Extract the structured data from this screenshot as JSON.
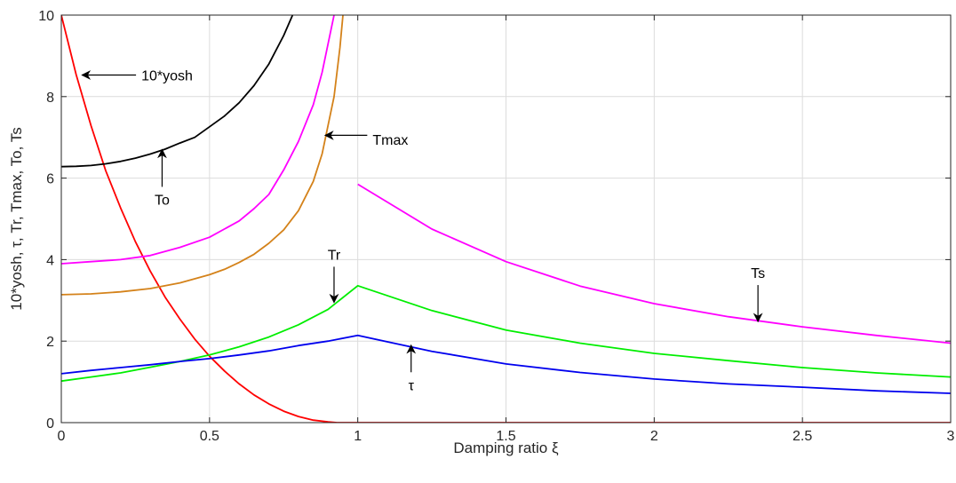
{
  "chart_data": {
    "type": "line",
    "title": "",
    "xlabel": "Damping ratio ξ",
    "ylabel": "10*yosh, τ, Tr, Tmax, To, Ts",
    "xlim": [
      0,
      3
    ],
    "ylim": [
      0,
      10
    ],
    "grid": true,
    "x_ticks": [
      0,
      0.5,
      1,
      1.5,
      2,
      2.5,
      3
    ],
    "x_tick_labels": [
      "0",
      "0.5",
      "1",
      "1.5",
      "2",
      "2.5",
      "3"
    ],
    "y_ticks": [
      0,
      2,
      4,
      6,
      8,
      10
    ],
    "y_tick_labels": [
      "0",
      "2",
      "4",
      "6",
      "8",
      "10"
    ],
    "series": [
      {
        "key": "yosh",
        "color": "#ff0000",
        "x": [
          0,
          0.05,
          0.1,
          0.15,
          0.2,
          0.25,
          0.3,
          0.35,
          0.4,
          0.45,
          0.5,
          0.55,
          0.6,
          0.65,
          0.7,
          0.75,
          0.8,
          0.85,
          0.9,
          0.93,
          0.95,
          1,
          1.5,
          2,
          2.5,
          3
        ],
        "y": [
          10,
          8.54,
          7.29,
          6.18,
          5.27,
          4.44,
          3.72,
          3.08,
          2.54,
          2.05,
          1.63,
          1.27,
          0.95,
          0.68,
          0.46,
          0.28,
          0.15,
          0.06,
          0.02,
          0,
          0,
          0,
          0,
          0,
          0,
          0
        ]
      },
      {
        "key": "To",
        "color": "#000000",
        "x": [
          0,
          0.05,
          0.1,
          0.15,
          0.2,
          0.25,
          0.3,
          0.35,
          0.4,
          0.45,
          0.5,
          0.55,
          0.6,
          0.65,
          0.7,
          0.75,
          0.78
        ],
        "y": [
          6.28,
          6.29,
          6.31,
          6.35,
          6.41,
          6.49,
          6.59,
          6.71,
          6.86,
          7.0,
          7.26,
          7.52,
          7.85,
          8.27,
          8.8,
          9.5,
          10
        ]
      },
      {
        "key": "Tmax_upper",
        "color": "#ff00ff",
        "x": [
          0,
          0.1,
          0.2,
          0.3,
          0.4,
          0.5,
          0.55,
          0.6,
          0.65,
          0.7,
          0.75,
          0.8,
          0.85,
          0.88,
          0.9,
          0.92
        ],
        "y": [
          3.9,
          3.95,
          4.0,
          4.1,
          4.3,
          4.55,
          4.75,
          4.95,
          5.25,
          5.6,
          6.2,
          6.9,
          7.8,
          8.6,
          9.3,
          10
        ]
      },
      {
        "key": "Tmax",
        "color": "#d4821a",
        "x": [
          0,
          0.1,
          0.2,
          0.3,
          0.4,
          0.5,
          0.55,
          0.6,
          0.65,
          0.7,
          0.75,
          0.8,
          0.85,
          0.88,
          0.9,
          0.92,
          0.94,
          0.95
        ],
        "y": [
          3.14,
          3.16,
          3.21,
          3.29,
          3.43,
          3.63,
          3.76,
          3.93,
          4.13,
          4.4,
          4.73,
          5.2,
          5.92,
          6.6,
          7.3,
          8.0,
          9.2,
          10
        ]
      },
      {
        "key": "Ts",
        "color": "#ff00ff",
        "x": [
          1,
          1.25,
          1.5,
          1.75,
          2,
          2.25,
          2.5,
          2.75,
          3
        ],
        "y": [
          5.85,
          4.75,
          3.95,
          3.35,
          2.92,
          2.6,
          2.35,
          2.14,
          1.95
        ]
      },
      {
        "key": "Tr",
        "color": "#00ee00",
        "x": [
          0,
          0.1,
          0.2,
          0.3,
          0.4,
          0.5,
          0.6,
          0.7,
          0.8,
          0.9,
          1,
          1.25,
          1.5,
          1.75,
          2,
          2.25,
          2.5,
          2.75,
          3
        ],
        "y": [
          1.02,
          1.12,
          1.22,
          1.36,
          1.5,
          1.66,
          1.86,
          2.1,
          2.4,
          2.78,
          3.36,
          2.75,
          2.27,
          1.95,
          1.7,
          1.52,
          1.35,
          1.22,
          1.12
        ]
      },
      {
        "key": "tau",
        "color": "#0000ee",
        "x": [
          0,
          0.1,
          0.2,
          0.3,
          0.4,
          0.5,
          0.6,
          0.7,
          0.8,
          0.9,
          1,
          1.25,
          1.5,
          1.75,
          2,
          2.25,
          2.5,
          2.75,
          3
        ],
        "y": [
          1.2,
          1.28,
          1.35,
          1.42,
          1.5,
          1.57,
          1.66,
          1.76,
          1.89,
          2.0,
          2.14,
          1.75,
          1.44,
          1.23,
          1.07,
          0.95,
          0.87,
          0.78,
          0.72
        ]
      }
    ],
    "annotations": [
      {
        "key": "yosh_label",
        "text": "10*yosh",
        "tip_x": 0.07,
        "tip_y": 8.53,
        "text_x": 0.27,
        "text_y": 8.53
      },
      {
        "key": "tmax_label",
        "text": "Tmax",
        "tip_x": 0.89,
        "tip_y": 7.05,
        "text_x": 1.05,
        "text_y": 6.95
      },
      {
        "key": "to_label",
        "text": "To",
        "tip_x": 0.34,
        "tip_y": 6.7,
        "text_x": 0.34,
        "text_y": 5.35
      },
      {
        "key": "tr_label",
        "text": "Tr",
        "tip_x": 0.92,
        "tip_y": 2.95,
        "text_x": 0.92,
        "text_y": 4.0
      },
      {
        "key": "ts_label",
        "text": "Ts",
        "tip_x": 2.35,
        "tip_y": 2.48,
        "text_x": 2.35,
        "text_y": 3.55
      },
      {
        "key": "tau_label",
        "text": "τ",
        "tip_x": 1.18,
        "tip_y": 1.9,
        "text_x": 1.18,
        "text_y": 0.8
      }
    ]
  }
}
